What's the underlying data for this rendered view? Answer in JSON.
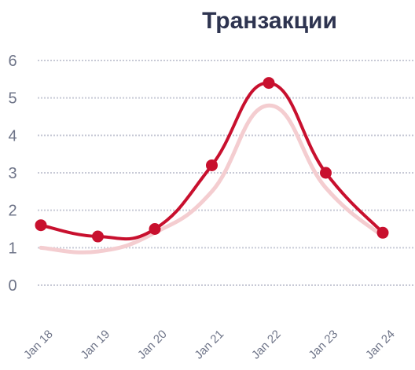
{
  "chart_data": {
    "type": "line",
    "title": "Транзакции",
    "xlabel": "",
    "ylabel": "",
    "ylim": [
      0,
      6
    ],
    "yticks": [
      "0",
      "1",
      "2",
      "3",
      "4",
      "5",
      "6"
    ],
    "grid": true,
    "categories": [
      "Jan 18",
      "Jan 19",
      "Jan 20",
      "Jan 21",
      "Jan 22",
      "Jan 23",
      "Jan 24"
    ],
    "series": [
      {
        "values": [
          1.6,
          1.3,
          1.5,
          3.2,
          5.4,
          3.0,
          1.4
        ],
        "color": "#c8102e",
        "markers": true
      },
      {
        "values": [
          1.0,
          0.9,
          1.4,
          2.5,
          4.8,
          2.6,
          1.3
        ],
        "color": "#f4cdd0",
        "markers": false
      }
    ]
  }
}
